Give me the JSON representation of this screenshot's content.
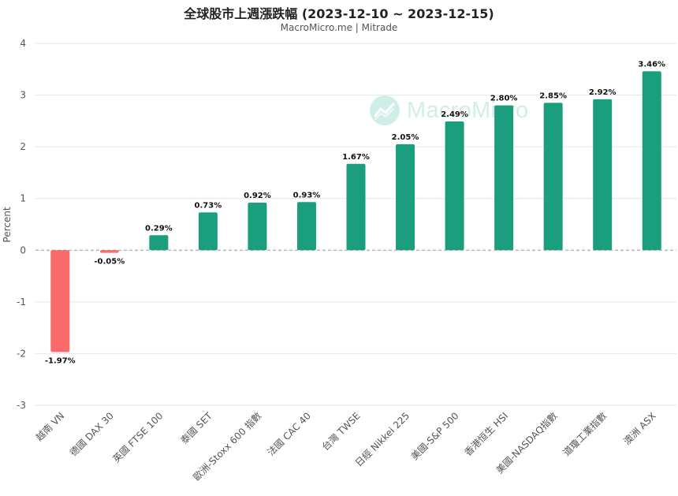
{
  "title": "全球股市上週漲跌幅 (2023-12-10 ~ 2023-12-15)",
  "subtitle": "MacroMicro.me | Mitrade",
  "watermark": {
    "text": "MacroMicro",
    "icon": "macromicro-logo-icon"
  },
  "colors": {
    "positive": "#1a9e7e",
    "negative": "#f96b6b",
    "grid": "#e6e6e6",
    "zero_line": "#999999",
    "watermark": "#2fb49a"
  },
  "chart_data": {
    "type": "bar",
    "title": "全球股市上週漲跌幅 (2023-12-10 ~ 2023-12-15)",
    "subtitle": "MacroMicro.me | Mitrade",
    "xlabel": "",
    "ylabel": "Percent",
    "ylim": [
      -3,
      4
    ],
    "yticks": [
      4,
      3,
      2,
      1,
      0,
      -1,
      -2,
      -3
    ],
    "grid": true,
    "legend": "none",
    "categories": [
      "越南 VN",
      "德國 DAX 30",
      "英國 FTSE 100",
      "泰國 SET",
      "歐洲-Stoxx 600 指數",
      "法國 CAC 40",
      "台灣 TWSE",
      "日經 Nikkei 225",
      "美國-S&P 500",
      "香港恒生 HSI",
      "美國-NASDAQ指數",
      "道瓊工業指數",
      "澳洲 ASX"
    ],
    "values": [
      -1.97,
      -0.05,
      0.29,
      0.73,
      0.92,
      0.93,
      1.67,
      2.05,
      2.49,
      2.8,
      2.85,
      2.92,
      3.46
    ],
    "labels": [
      "-1.97%",
      "-0.05%",
      "0.29%",
      "0.73%",
      "0.92%",
      "0.93%",
      "1.67%",
      "2.05%",
      "2.49%",
      "2.80%",
      "2.85%",
      "2.92%",
      "3.46%"
    ]
  }
}
